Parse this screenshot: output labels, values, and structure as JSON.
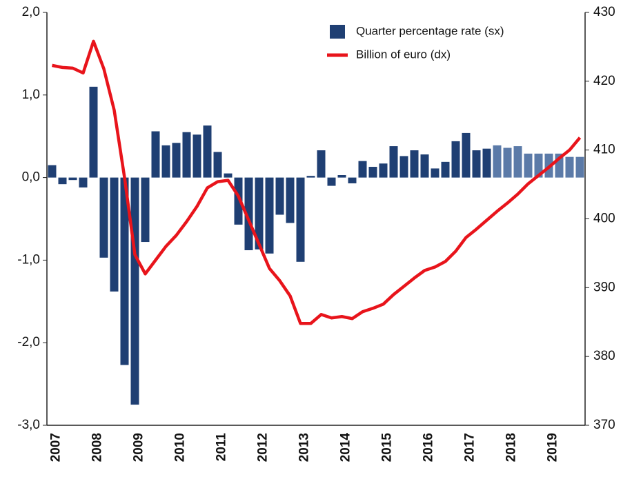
{
  "chart_data": {
    "type": "bar",
    "categories": [
      "2007",
      null,
      null,
      null,
      "2008",
      null,
      null,
      null,
      "2009",
      null,
      null,
      null,
      "2010",
      null,
      null,
      null,
      "2011",
      null,
      null,
      null,
      "2012",
      null,
      null,
      null,
      "2013",
      null,
      null,
      null,
      "2014",
      null,
      null,
      null,
      "2015",
      null,
      null,
      null,
      "2016",
      null,
      null,
      null,
      "2017",
      null,
      null,
      null,
      "2018",
      null,
      null,
      null,
      "2019",
      null,
      null,
      null
    ],
    "series": [
      {
        "name": "Quarter percentage rate (sx)",
        "type": "bar",
        "color": "#1f3f73",
        "colors": [
          "#1f3f73",
          "#1f3f73",
          "#1f3f73",
          "#1f3f73",
          "#1f3f73",
          "#1f3f73",
          "#1f3f73",
          "#1f3f73",
          "#1f3f73",
          "#1f3f73",
          "#1f3f73",
          "#1f3f73",
          "#1f3f73",
          "#1f3f73",
          "#1f3f73",
          "#1f3f73",
          "#1f3f73",
          "#1f3f73",
          "#1f3f73",
          "#1f3f73",
          "#1f3f73",
          "#1f3f73",
          "#1f3f73",
          "#1f3f73",
          "#1f3f73",
          "#1f3f73",
          "#1f3f73",
          "#1f3f73",
          "#1f3f73",
          "#1f3f73",
          "#1f3f73",
          "#1f3f73",
          "#1f3f73",
          "#1f3f73",
          "#1f3f73",
          "#1f3f73",
          "#1f3f73",
          "#1f3f73",
          "#1f3f73",
          "#1f3f73",
          "#1f3f73",
          "#1f3f73",
          "#1f3f73",
          "#5b7aa8",
          "#5b7aa8",
          "#5b7aa8",
          "#5b7aa8",
          "#5b7aa8",
          "#5b7aa8",
          "#5b7aa8",
          "#5b7aa8",
          "#5b7aa8"
        ],
        "values": [
          0.15,
          -0.08,
          -0.03,
          -0.12,
          1.1,
          -0.97,
          -1.38,
          -2.27,
          -2.75,
          -0.78,
          0.56,
          0.39,
          0.42,
          0.55,
          0.52,
          0.63,
          0.31,
          0.05,
          -0.57,
          -0.88,
          -0.87,
          -0.92,
          -0.45,
          -0.55,
          -1.02,
          0.02,
          0.33,
          -0.1,
          0.03,
          -0.07,
          0.2,
          0.13,
          0.17,
          0.38,
          0.26,
          0.33,
          0.28,
          0.11,
          0.19,
          0.44,
          0.54,
          0.33,
          0.35,
          0.39,
          0.36,
          0.38,
          0.29,
          0.29,
          0.29,
          0.29,
          0.25,
          0.25
        ]
      },
      {
        "name": "Billion of euro (dx)",
        "type": "line",
        "axis": "y2",
        "color": "#e8141b",
        "values": [
          422.3,
          422,
          421.9,
          421.2,
          425.8,
          421.8,
          415.8,
          406,
          394.8,
          392,
          394,
          396,
          397.6,
          399.6,
          401.8,
          404.5,
          405.4,
          405.6,
          403.3,
          399.8,
          396.3,
          392.8,
          391,
          388.8,
          384.8,
          384.8,
          386.1,
          385.6,
          385.8,
          385.5,
          386.5,
          387,
          387.6,
          389,
          390.2,
          391.4,
          392.5,
          393,
          393.8,
          395.3,
          397.3,
          398.5,
          399.8,
          401.1,
          402.3,
          403.6,
          405.1,
          406.3,
          407.5,
          408.8,
          410,
          411.8
        ]
      }
    ],
    "ylim": [
      -3,
      2
    ],
    "yticks": [
      {
        "value": -3,
        "label": "-3,0"
      },
      {
        "value": -2,
        "label": "-2,0"
      },
      {
        "value": -1,
        "label": "-1,0"
      },
      {
        "value": 0,
        "label": "0,0"
      },
      {
        "value": 1,
        "label": "1,0"
      },
      {
        "value": 2,
        "label": "2,0"
      }
    ],
    "y2lim": [
      370,
      430
    ],
    "y2ticks": [
      370,
      380,
      390,
      400,
      410,
      420,
      430
    ],
    "grid": false,
    "legend": "top-right"
  }
}
